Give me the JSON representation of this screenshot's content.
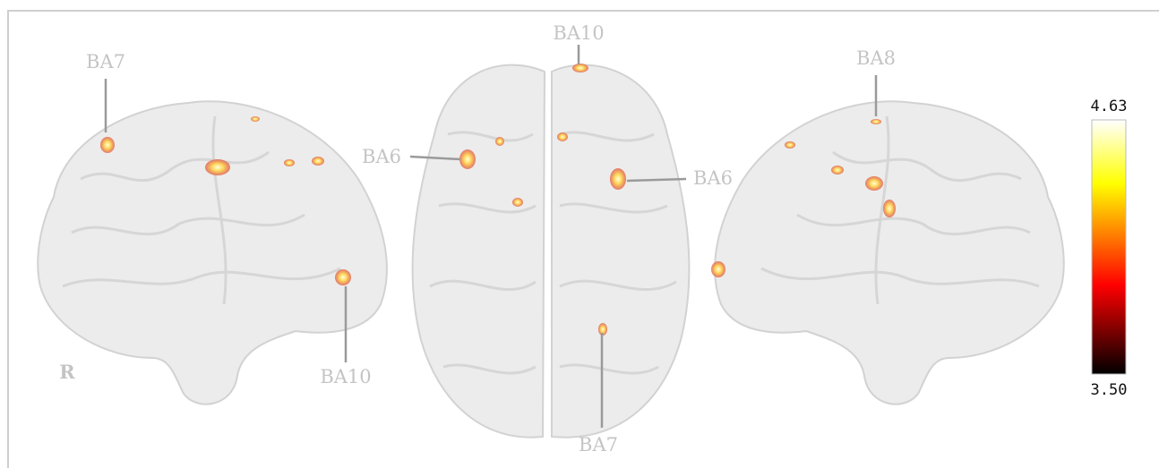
{
  "left_view": {
    "top_label": "BA7",
    "bottom_label": "BA10",
    "side": "R"
  },
  "top_view": {
    "top_label": "BA10",
    "left_label": "BA6",
    "right_label": "BA6",
    "bottom_label": "BA7"
  },
  "right_view": {
    "top_label": "BA8"
  },
  "colorbar": {
    "max": "4.63",
    "min": "3.50"
  }
}
